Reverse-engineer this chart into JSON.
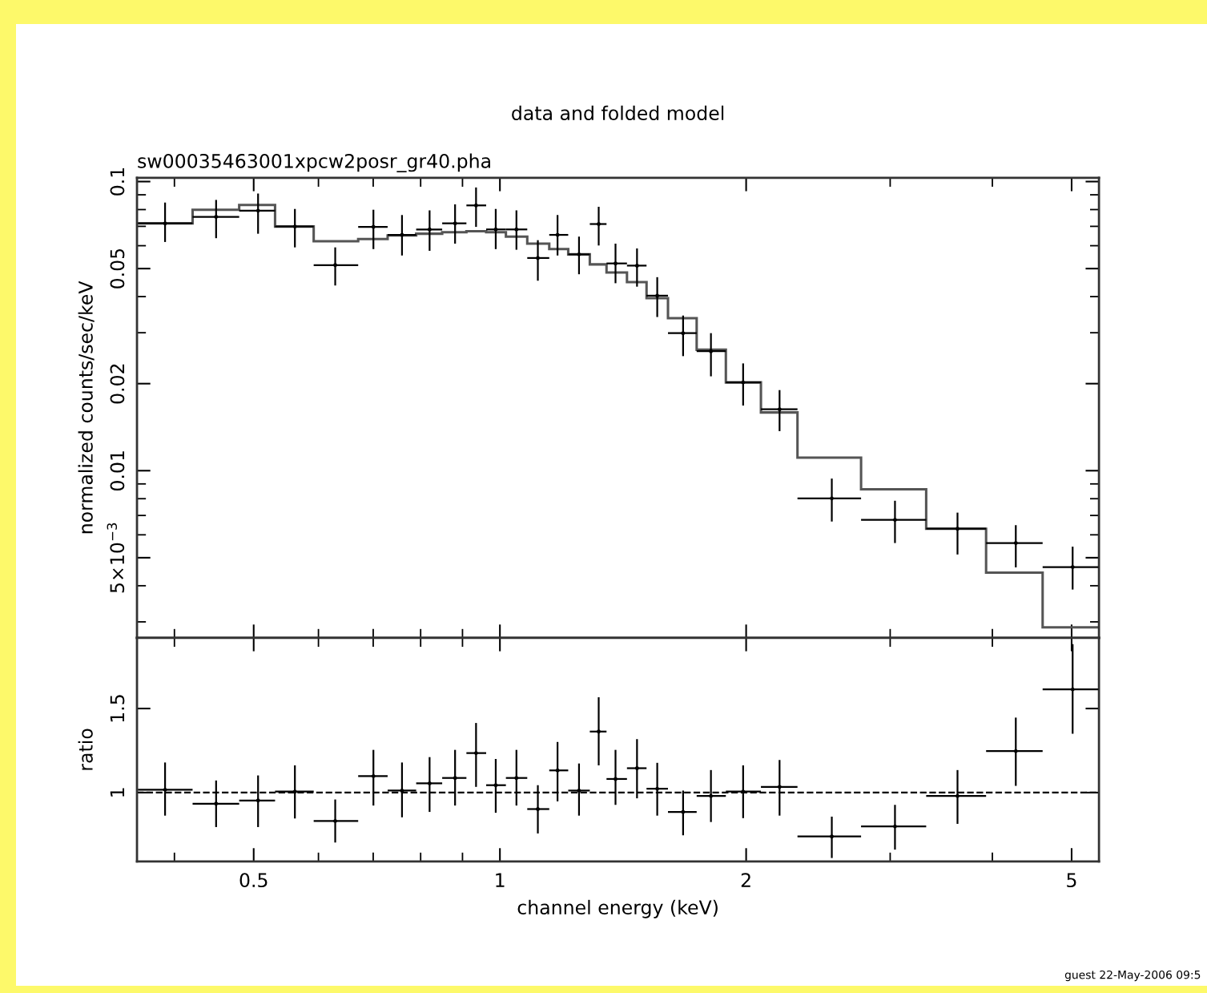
{
  "chart_data": [
    {
      "type": "scatter",
      "title": "data and folded model",
      "subtitle": "sw00035463001xpcw2posr_gr40.pha",
      "ylabel": "normalized counts/sec/keV",
      "log": "xy",
      "tick_labels": "y",
      "xlim": [
        0.36,
        5.4
      ],
      "xticks": [
        {
          "value": 0.4,
          "label": null
        },
        0.5,
        {
          "value": 0.6,
          "label": null
        },
        {
          "value": 0.7,
          "label": null
        },
        {
          "value": 0.8,
          "label": null
        },
        {
          "value": 0.9,
          "label": null
        },
        1,
        2,
        {
          "value": 3,
          "label": null
        },
        {
          "value": 4,
          "label": null
        },
        5
      ],
      "ylim": [
        0.00264,
        0.103
      ],
      "yticks": [
        {
          "value": 0.003,
          "label": null
        },
        {
          "value": 0.004,
          "label": null
        },
        {
          "value": 0.005,
          "label": "5×10$^{−3}$"
        },
        {
          "value": 0.006,
          "label": null
        },
        {
          "value": 0.007,
          "label": null
        },
        {
          "value": 0.008,
          "label": null
        },
        {
          "value": 0.009,
          "label": null
        },
        0.01,
        0.02,
        {
          "value": 0.03,
          "label": null
        },
        {
          "value": 0.04,
          "label": null
        },
        0.05,
        {
          "value": 0.06,
          "label": null
        },
        {
          "value": 0.07,
          "label": null
        },
        {
          "value": 0.08,
          "label": null
        },
        {
          "value": 0.09,
          "label": null
        },
        0.1
      ],
      "x": [
        0.3896,
        0.4498,
        0.5062,
        0.5615,
        0.629,
        0.7004,
        0.7591,
        0.8204,
        0.8814,
        0.935,
        0.9883,
        1.0476,
        1.1127,
        1.1761,
        1.2494,
        1.3206,
        1.3846,
        1.471,
        1.5572,
        1.6747,
        1.8113,
        1.9831,
        2.1973,
        2.5454,
        3.0409,
        3.6261,
        4.2727,
        5.0141
      ],
      "series": [
        {
          "type": "histogram",
          "color": "#555555",
          "bins": [
            0.361,
            0.421,
            0.48,
            0.531,
            0.592,
            0.671,
            0.729,
            0.79,
            0.85,
            0.91,
            0.962,
            1.017,
            1.08,
            1.149,
            1.212,
            1.288,
            1.35,
            1.43,
            1.511,
            1.605,
            1.74,
            1.889,
            2.085,
            2.311,
            2.764,
            3.32,
            3.93,
            4.608,
            5.39
          ],
          "values": [
            0.0717,
            0.0799,
            0.083,
            0.0699,
            0.0622,
            0.0633,
            0.0651,
            0.066,
            0.0668,
            0.0673,
            0.0668,
            0.0645,
            0.061,
            0.0584,
            0.056,
            0.0517,
            0.0485,
            0.0449,
            0.0395,
            0.0337,
            0.0262,
            0.0202,
            0.0159,
            0.0111,
            0.00862,
            0.0063,
            0.00444,
            0.00287
          ]
        },
        {
          "color": "#000000",
          "values": [
            0.0717,
            0.0755,
            0.0793,
            0.0699,
            0.0514,
            0.0697,
            0.0654,
            0.0683,
            0.0717,
            0.0827,
            0.0683,
            0.0683,
            0.0544,
            0.0654,
            0.056,
            0.0713,
            0.0521,
            0.0512,
            0.0403,
            0.0299,
            0.0259,
            0.0202,
            0.0163,
            0.00802,
            0.00676,
            0.0063,
            0.00562,
            0.00464
          ],
          "errors": [
            [
              0.0618,
              0.0846
            ],
            [
              0.0637,
              0.0864
            ],
            [
              0.066,
              0.0909
            ],
            [
              0.0592,
              0.0804
            ],
            [
              0.0437,
              0.0592
            ],
            [
              0.0584,
              0.0799
            ],
            [
              0.0555,
              0.0766
            ],
            [
              0.0576,
              0.0795
            ],
            [
              0.061,
              0.0834
            ],
            [
              0.0697,
              0.0954
            ],
            [
              0.0584,
              0.0804
            ],
            [
              0.0581,
              0.0795
            ],
            [
              0.0454,
              0.0627
            ],
            [
              0.0555,
              0.0766
            ],
            [
              0.0478,
              0.0645
            ],
            [
              0.0601,
              0.0818
            ],
            [
              0.0445,
              0.061
            ],
            [
              0.0433,
              0.0587
            ],
            [
              0.034,
              0.0467
            ],
            [
              0.0249,
              0.0344
            ],
            [
              0.0212,
              0.0299
            ],
            [
              0.0168,
              0.0235
            ],
            [
              0.0137,
              0.019
            ],
            [
              0.00667,
              0.00939
            ],
            [
              0.00562,
              0.00787
            ],
            [
              0.00513,
              0.00716
            ],
            [
              0.00463,
              0.00648
            ],
            [
              0.00388,
              0.00546
            ]
          ],
          "xerrors": [
            [
              0.361,
              0.421
            ],
            [
              0.421,
              0.48
            ],
            [
              0.48,
              0.531
            ],
            [
              0.531,
              0.592
            ],
            [
              0.592,
              0.671
            ],
            [
              0.671,
              0.729
            ],
            [
              0.729,
              0.79
            ],
            [
              0.79,
              0.85
            ],
            [
              0.85,
              0.91
            ],
            [
              0.91,
              0.962
            ],
            [
              0.962,
              1.017
            ],
            [
              1.017,
              1.08
            ],
            [
              1.08,
              1.149
            ],
            [
              1.149,
              1.212
            ],
            [
              1.212,
              1.288
            ],
            [
              1.288,
              1.35
            ],
            [
              1.35,
              1.43
            ],
            [
              1.43,
              1.511
            ],
            [
              1.511,
              1.605
            ],
            [
              1.605,
              1.74
            ],
            [
              1.74,
              1.889
            ],
            [
              1.889,
              2.085
            ],
            [
              2.085,
              2.311
            ],
            [
              2.311,
              2.764
            ],
            [
              2.764,
              3.32
            ],
            [
              3.32,
              3.93
            ],
            [
              3.93,
              4.608
            ],
            [
              4.608,
              5.39
            ]
          ]
        }
      ],
      "annotations": [
        "guest 22-May-2006 09:5"
      ]
    },
    {
      "type": "scatter",
      "xlabel": "channel energy (keV)",
      "ylabel": "ratio",
      "log": "x",
      "xlim": [
        0.36,
        5.4
      ],
      "xticks": [
        {
          "value": 0.4,
          "label": null
        },
        0.5,
        {
          "value": 0.6,
          "label": null
        },
        {
          "value": 0.7,
          "label": null
        },
        {
          "value": 0.8,
          "label": null
        },
        {
          "value": 0.9,
          "label": null
        },
        1,
        2,
        {
          "value": 3,
          "label": null
        },
        {
          "value": 4,
          "label": null
        },
        5
      ],
      "ylim": [
        0.59,
        1.92
      ],
      "yticks": [
        1,
        1.5
      ],
      "x": [
        0.3896,
        0.4498,
        0.5062,
        0.5615,
        0.629,
        0.7004,
        0.7591,
        0.8204,
        0.8814,
        0.935,
        0.9883,
        1.0476,
        1.1127,
        1.1761,
        1.2494,
        1.3206,
        1.3846,
        1.471,
        1.5572,
        1.6747,
        1.8113,
        1.9831,
        2.1973,
        2.5454,
        3.0409,
        3.6261,
        4.2727,
        5.0141
      ],
      "series": [
        {
          "color": "#000000",
          "values": [
            1.017,
            0.934,
            0.953,
            1.006,
            0.831,
            1.098,
            1.012,
            1.055,
            1.087,
            1.235,
            1.044,
            1.087,
            0.902,
            1.132,
            1.012,
            1.363,
            1.081,
            1.145,
            1.023,
            0.885,
            0.98,
            1.006,
            1.034,
            0.739,
            0.799,
            0.98,
            1.247,
            1.614
          ],
          "errors": [
            [
              0.863,
              1.179
            ],
            [
              0.795,
              1.072
            ],
            [
              0.795,
              1.102
            ],
            [
              0.846,
              1.162
            ],
            [
              0.703,
              0.959
            ],
            [
              0.923,
              1.254
            ],
            [
              0.853,
              1.179
            ],
            [
              0.885,
              1.211
            ],
            [
              0.923,
              1.254
            ],
            [
              1.034,
              1.414
            ],
            [
              0.88,
              1.2
            ],
            [
              0.923,
              1.254
            ],
            [
              0.757,
              1.044
            ],
            [
              0.948,
              1.301
            ],
            [
              0.863,
              1.173
            ],
            [
              1.162,
              1.567
            ],
            [
              0.927,
              1.254
            ],
            [
              0.966,
              1.318
            ],
            [
              0.863,
              1.177
            ],
            [
              0.746,
              1.012
            ],
            [
              0.825,
              1.134
            ],
            [
              0.848,
              1.162
            ],
            [
              0.863,
              1.194
            ],
            [
              0.611,
              0.857
            ],
            [
              0.661,
              0.927
            ],
            [
              0.814,
              1.134
            ],
            [
              1.04,
              1.446
            ],
            [
              1.35,
              1.883
            ]
          ],
          "xerrors": [
            [
              0.361,
              0.421
            ],
            [
              0.421,
              0.48
            ],
            [
              0.48,
              0.531
            ],
            [
              0.531,
              0.592
            ],
            [
              0.592,
              0.671
            ],
            [
              0.671,
              0.729
            ],
            [
              0.729,
              0.79
            ],
            [
              0.79,
              0.85
            ],
            [
              0.85,
              0.91
            ],
            [
              0.91,
              0.962
            ],
            [
              0.962,
              1.017
            ],
            [
              1.017,
              1.08
            ],
            [
              1.08,
              1.149
            ],
            [
              1.149,
              1.212
            ],
            [
              1.212,
              1.288
            ],
            [
              1.288,
              1.35
            ],
            [
              1.35,
              1.43
            ],
            [
              1.43,
              1.511
            ],
            [
              1.511,
              1.605
            ],
            [
              1.605,
              1.74
            ],
            [
              1.74,
              1.889
            ],
            [
              1.889,
              2.085
            ],
            [
              2.085,
              2.311
            ],
            [
              2.311,
              2.764
            ],
            [
              2.764,
              3.32
            ],
            [
              3.32,
              3.93
            ],
            [
              3.93,
              4.608
            ],
            [
              4.608,
              5.39
            ]
          ]
        }
      ],
      "ref_lines": [
        {
          "axis": "y",
          "value": 1,
          "color": "#000000",
          "line_style": "dashed"
        }
      ]
    }
  ]
}
